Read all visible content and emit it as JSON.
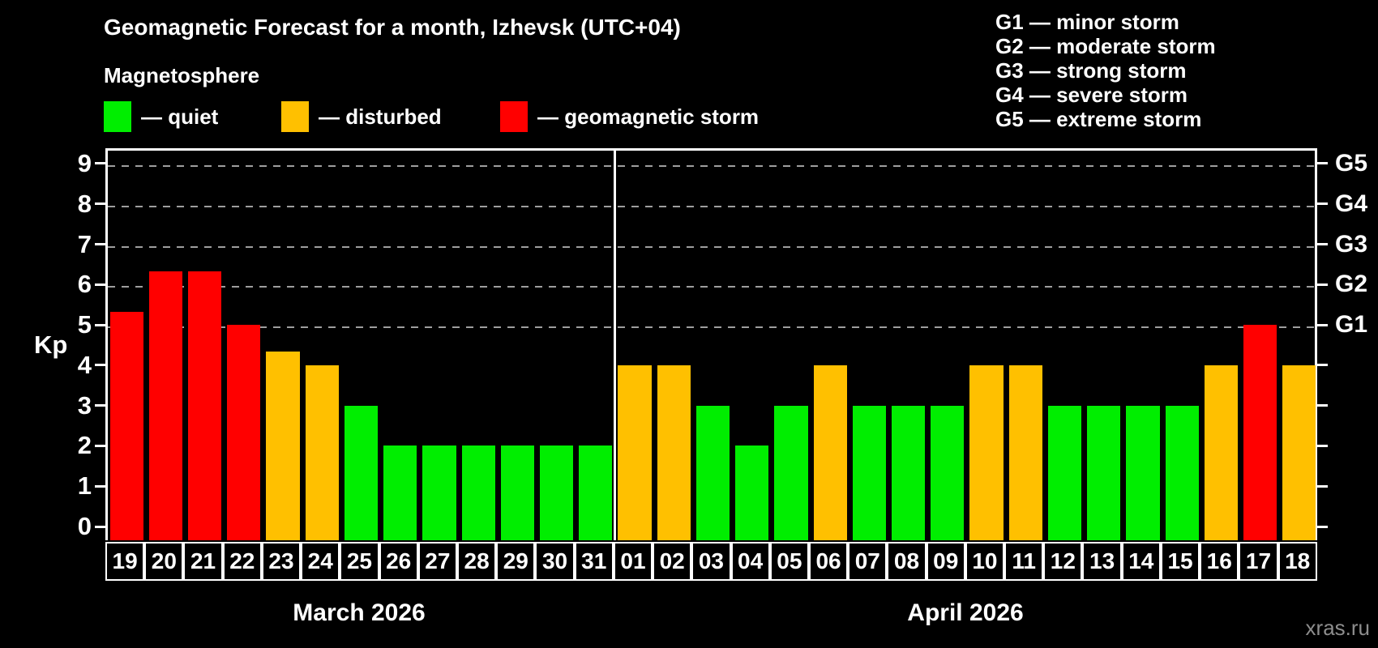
{
  "title": "Geomagnetic Forecast for a month, Izhevsk (UTC+04)",
  "subtitle": "Magnetosphere",
  "kp_legend": {
    "items": [
      {
        "name": "quiet",
        "label": "— quiet",
        "color": "#00ee00"
      },
      {
        "name": "disturbed",
        "label": "— disturbed",
        "color": "#ffc000"
      },
      {
        "name": "storm",
        "label": "— geomagnetic storm",
        "color": "#ff0000"
      }
    ]
  },
  "g_legend": {
    "items": [
      "G1 — minor storm",
      "G2 — moderate storm",
      "G3 — strong storm",
      "G4 — severe storm",
      "G5 — extreme storm"
    ]
  },
  "watermark": "xras.ru",
  "chart_data": {
    "type": "bar",
    "title": "Geomagnetic Forecast for a month, Izhevsk (UTC+04)",
    "ylabel": "Kp",
    "ylim": [
      0,
      9
    ],
    "yticks": [
      0,
      1,
      2,
      3,
      4,
      5,
      6,
      7,
      8,
      9
    ],
    "grid": "dashed horizontal gray lines at Kp 5,6,7,8,9",
    "legend_position": "top-left (bar colors) and top-right (G scale)",
    "right_axis": [
      {
        "kp": 5,
        "label": "G1"
      },
      {
        "kp": 6,
        "label": "G2"
      },
      {
        "kp": 7,
        "label": "G3"
      },
      {
        "kp": 8,
        "label": "G4"
      },
      {
        "kp": 9,
        "label": "G5"
      }
    ],
    "level_colors": {
      "quiet": "#00ee00",
      "disturbed": "#ffc000",
      "storm": "#ff0000"
    },
    "months": [
      {
        "label": "March 2026",
        "days": 13
      },
      {
        "label": "April 2026",
        "days": 18
      }
    ],
    "bars": [
      {
        "month": "March 2026",
        "day": "19",
        "kp": 5.33,
        "level": "storm"
      },
      {
        "month": "March 2026",
        "day": "20",
        "kp": 6.33,
        "level": "storm"
      },
      {
        "month": "March 2026",
        "day": "21",
        "kp": 6.33,
        "level": "storm"
      },
      {
        "month": "March 2026",
        "day": "22",
        "kp": 5,
        "level": "storm"
      },
      {
        "month": "March 2026",
        "day": "23",
        "kp": 4.33,
        "level": "disturbed"
      },
      {
        "month": "March 2026",
        "day": "24",
        "kp": 4,
        "level": "disturbed"
      },
      {
        "month": "March 2026",
        "day": "25",
        "kp": 3,
        "level": "quiet"
      },
      {
        "month": "March 2026",
        "day": "26",
        "kp": 2,
        "level": "quiet"
      },
      {
        "month": "March 2026",
        "day": "27",
        "kp": 2,
        "level": "quiet"
      },
      {
        "month": "March 2026",
        "day": "28",
        "kp": 2,
        "level": "quiet"
      },
      {
        "month": "March 2026",
        "day": "29",
        "kp": 2,
        "level": "quiet"
      },
      {
        "month": "March 2026",
        "day": "30",
        "kp": 2,
        "level": "quiet"
      },
      {
        "month": "March 2026",
        "day": "31",
        "kp": 2,
        "level": "quiet"
      },
      {
        "month": "April 2026",
        "day": "01",
        "kp": 4,
        "level": "disturbed"
      },
      {
        "month": "April 2026",
        "day": "02",
        "kp": 4,
        "level": "disturbed"
      },
      {
        "month": "April 2026",
        "day": "03",
        "kp": 3,
        "level": "quiet"
      },
      {
        "month": "April 2026",
        "day": "04",
        "kp": 2,
        "level": "quiet"
      },
      {
        "month": "April 2026",
        "day": "05",
        "kp": 3,
        "level": "quiet"
      },
      {
        "month": "April 2026",
        "day": "06",
        "kp": 4,
        "level": "disturbed"
      },
      {
        "month": "April 2026",
        "day": "07",
        "kp": 3,
        "level": "quiet"
      },
      {
        "month": "April 2026",
        "day": "08",
        "kp": 3,
        "level": "quiet"
      },
      {
        "month": "April 2026",
        "day": "09",
        "kp": 3,
        "level": "quiet"
      },
      {
        "month": "April 2026",
        "day": "10",
        "kp": 4,
        "level": "disturbed"
      },
      {
        "month": "April 2026",
        "day": "11",
        "kp": 4,
        "level": "disturbed"
      },
      {
        "month": "April 2026",
        "day": "12",
        "kp": 3,
        "level": "quiet"
      },
      {
        "month": "April 2026",
        "day": "13",
        "kp": 3,
        "level": "quiet"
      },
      {
        "month": "April 2026",
        "day": "14",
        "kp": 3,
        "level": "quiet"
      },
      {
        "month": "April 2026",
        "day": "15",
        "kp": 3,
        "level": "quiet"
      },
      {
        "month": "April 2026",
        "day": "16",
        "kp": 4,
        "level": "disturbed"
      },
      {
        "month": "April 2026",
        "day": "17",
        "kp": 5,
        "level": "storm"
      },
      {
        "month": "April 2026",
        "day": "18",
        "kp": 4,
        "level": "disturbed"
      }
    ]
  }
}
